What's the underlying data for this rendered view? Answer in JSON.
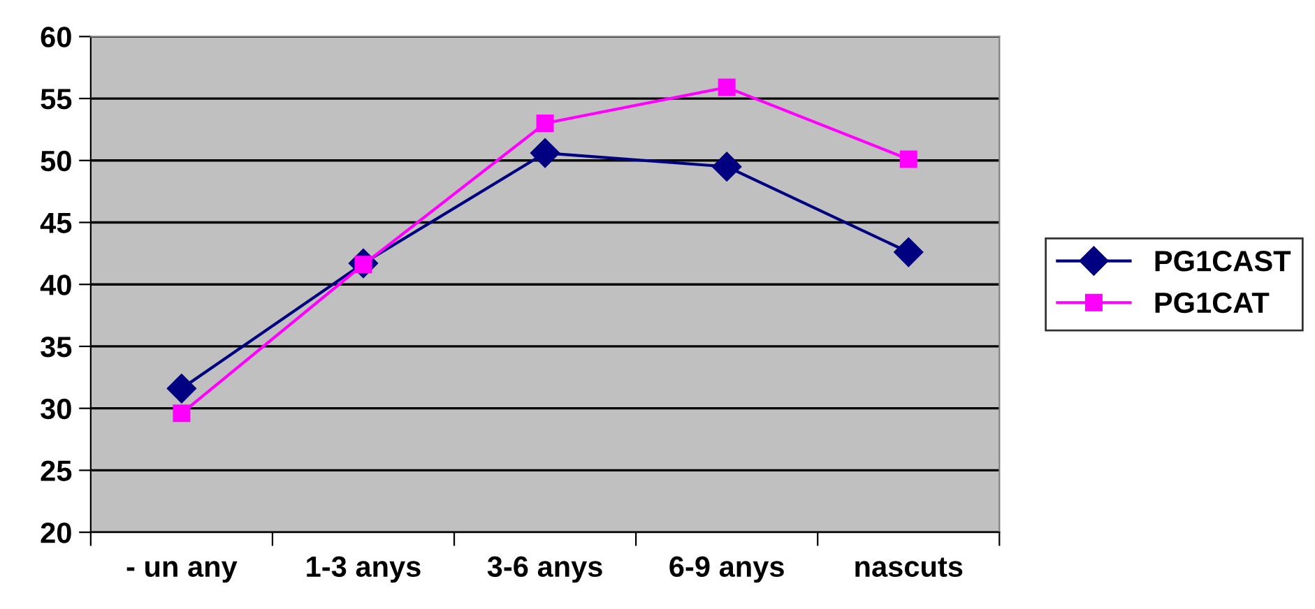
{
  "chart_data": {
    "type": "line",
    "categories": [
      "- un any",
      "1-3 anys",
      "3-6 anys",
      "6-9 anys",
      "nascuts"
    ],
    "series": [
      {
        "name": "PG1CAST",
        "color": "#000080",
        "marker": "diamond",
        "values": [
          31.6,
          41.7,
          50.6,
          49.5,
          42.6
        ]
      },
      {
        "name": "PG1CAT",
        "color": "#ff00ff",
        "marker": "square",
        "values": [
          29.6,
          41.6,
          53.0,
          55.9,
          50.1
        ]
      }
    ],
    "ylim": [
      20,
      60
    ],
    "yticks": [
      20,
      25,
      30,
      35,
      40,
      45,
      50,
      55,
      60
    ],
    "grid": "y",
    "legend": "right",
    "line_style": "solid"
  }
}
